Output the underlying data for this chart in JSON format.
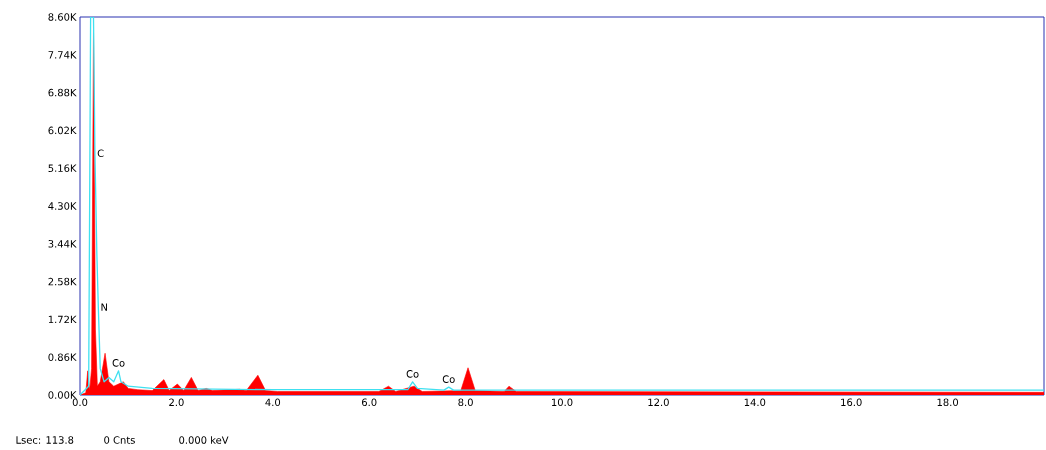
{
  "chart_data": {
    "type": "area",
    "xlim": [
      0,
      20
    ],
    "ylim": [
      0,
      8600
    ],
    "xticks": [
      {
        "value": 0,
        "label": "0.0"
      },
      {
        "value": 2,
        "label": "2.0"
      },
      {
        "value": 4,
        "label": "4.0"
      },
      {
        "value": 6,
        "label": "6.0"
      },
      {
        "value": 8,
        "label": "8.0"
      },
      {
        "value": 10,
        "label": "10.0"
      },
      {
        "value": 12,
        "label": "12.0"
      },
      {
        "value": 14,
        "label": "14.0"
      },
      {
        "value": 16,
        "label": "16.0"
      },
      {
        "value": 18,
        "label": "18.0"
      }
    ],
    "yticks": [
      {
        "value": 0,
        "label": "0.00K"
      },
      {
        "value": 860,
        "label": "0.86K"
      },
      {
        "value": 1720,
        "label": "1.72K"
      },
      {
        "value": 2580,
        "label": "2.58K"
      },
      {
        "value": 3440,
        "label": "3.44K"
      },
      {
        "value": 4300,
        "label": "4.30K"
      },
      {
        "value": 5160,
        "label": "5.16K"
      },
      {
        "value": 6020,
        "label": "6.02K"
      },
      {
        "value": 6880,
        "label": "6.88K"
      },
      {
        "value": 7740,
        "label": "7.74K"
      },
      {
        "value": 8600,
        "label": "8.60K"
      }
    ],
    "series": [
      {
        "color": "#ff0000",
        "x": [
          0,
          0.12,
          0.16,
          0.2,
          0.24,
          0.28,
          0.32,
          0.36,
          0.42,
          0.52,
          0.6,
          0.7,
          0.9,
          1.0,
          1.2,
          1.5,
          1.74,
          1.85,
          2.02,
          2.15,
          2.31,
          2.45,
          2.62,
          2.75,
          3.31,
          3.45,
          3.69,
          3.85,
          4.1,
          6.2,
          6.4,
          6.55,
          6.93,
          7.1,
          7.9,
          8.05,
          8.2,
          8.8,
          8.9,
          9.05,
          20
        ],
        "values": [
          0,
          50,
          550,
          100,
          600,
          8300,
          1500,
          200,
          300,
          950,
          300,
          200,
          300,
          150,
          120,
          100,
          350,
          100,
          250,
          100,
          400,
          100,
          150,
          100,
          130,
          100,
          450,
          100,
          80,
          80,
          200,
          80,
          200,
          80,
          100,
          620,
          100,
          80,
          200,
          80,
          60
        ]
      },
      {
        "type": "line",
        "color": "#40e0f0",
        "x": [
          0,
          0.18,
          0.22,
          0.28,
          0.31,
          0.35,
          0.38,
          0.42,
          0.5,
          0.6,
          0.7,
          0.8,
          0.85,
          1.0,
          1.5,
          4,
          6.8,
          6.9,
          7.0,
          7.55,
          7.65,
          7.75,
          20
        ],
        "values": [
          0,
          200,
          8600,
          8600,
          5500,
          3200,
          2000,
          600,
          300,
          400,
          300,
          550,
          300,
          200,
          150,
          120,
          120,
          300,
          150,
          110,
          180,
          110,
          110
        ]
      }
    ],
    "annotations": [
      {
        "text": "C",
        "x": 0.31,
        "y": 5500
      },
      {
        "text": "N",
        "x": 0.38,
        "y": 2000
      },
      {
        "text": "Co",
        "x": 0.8,
        "y": 550
      },
      {
        "text": "Co",
        "x": 6.9,
        "y": 300
      },
      {
        "text": "Co",
        "x": 7.65,
        "y": 180
      },
      "Lsec: 113.8",
      "0 Cnts",
      "0.000 keV"
    ]
  }
}
